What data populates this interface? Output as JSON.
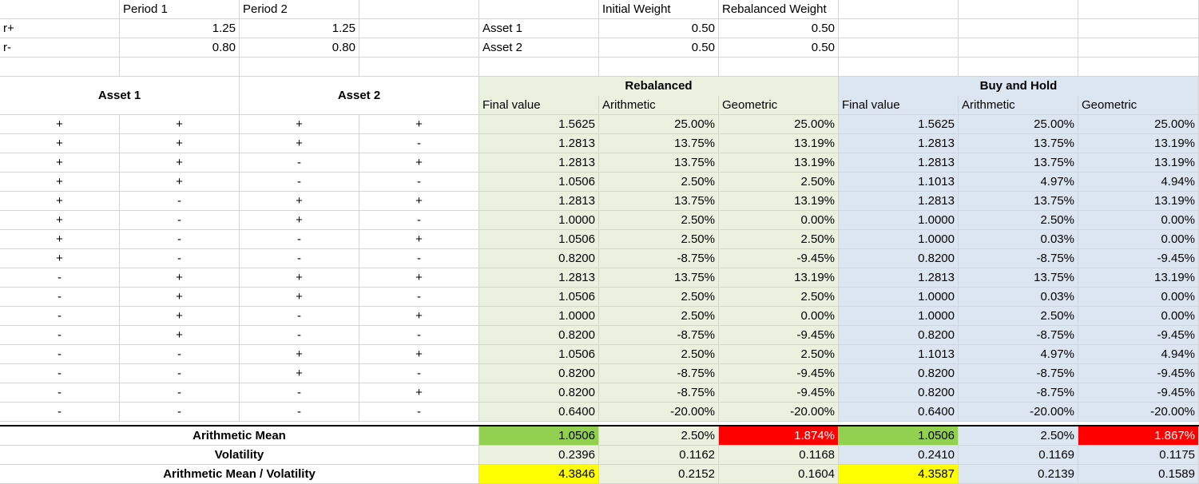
{
  "params": {
    "period_headers": [
      "Period 1",
      "Period 2"
    ],
    "rows": [
      {
        "label": "r+",
        "values": [
          "1.25",
          "1.25"
        ]
      },
      {
        "label": "r-",
        "values": [
          "0.80",
          "0.80"
        ]
      }
    ]
  },
  "weights": {
    "headers": [
      "Initial Weight",
      "Rebalanced Weight"
    ],
    "rows": [
      {
        "asset": "Asset 1",
        "initial": "0.50",
        "rebalanced": "0.50"
      },
      {
        "asset": "Asset 2",
        "initial": "0.50",
        "rebalanced": "0.50"
      }
    ]
  },
  "headers": {
    "asset1": "Asset 1",
    "asset2": "Asset 2",
    "rebalanced": "Rebalanced",
    "buy_hold": "Buy and Hold",
    "sub": [
      "Final value",
      "Arithmetic",
      "Geometric"
    ]
  },
  "scenarios": [
    {
      "signs": [
        "+",
        "+",
        "+",
        "+"
      ],
      "reb": [
        "1.5625",
        "25.00%",
        "25.00%"
      ],
      "bh": [
        "1.5625",
        "25.00%",
        "25.00%"
      ]
    },
    {
      "signs": [
        "+",
        "+",
        "+",
        "-"
      ],
      "reb": [
        "1.2813",
        "13.75%",
        "13.19%"
      ],
      "bh": [
        "1.2813",
        "13.75%",
        "13.19%"
      ]
    },
    {
      "signs": [
        "+",
        "+",
        "-",
        "+"
      ],
      "reb": [
        "1.2813",
        "13.75%",
        "13.19%"
      ],
      "bh": [
        "1.2813",
        "13.75%",
        "13.19%"
      ]
    },
    {
      "signs": [
        "+",
        "+",
        "-",
        "-"
      ],
      "reb": [
        "1.0506",
        "2.50%",
        "2.50%"
      ],
      "bh": [
        "1.1013",
        "4.97%",
        "4.94%"
      ]
    },
    {
      "signs": [
        "+",
        "-",
        "+",
        "+"
      ],
      "reb": [
        "1.2813",
        "13.75%",
        "13.19%"
      ],
      "bh": [
        "1.2813",
        "13.75%",
        "13.19%"
      ]
    },
    {
      "signs": [
        "+",
        "-",
        "+",
        "-"
      ],
      "reb": [
        "1.0000",
        "2.50%",
        "0.00%"
      ],
      "bh": [
        "1.0000",
        "2.50%",
        "0.00%"
      ]
    },
    {
      "signs": [
        "+",
        "-",
        "-",
        "+"
      ],
      "reb": [
        "1.0506",
        "2.50%",
        "2.50%"
      ],
      "bh": [
        "1.0000",
        "0.03%",
        "0.00%"
      ]
    },
    {
      "signs": [
        "+",
        "-",
        "-",
        "-"
      ],
      "reb": [
        "0.8200",
        "-8.75%",
        "-9.45%"
      ],
      "bh": [
        "0.8200",
        "-8.75%",
        "-9.45%"
      ]
    },
    {
      "signs": [
        "-",
        "+",
        "+",
        "+"
      ],
      "reb": [
        "1.2813",
        "13.75%",
        "13.19%"
      ],
      "bh": [
        "1.2813",
        "13.75%",
        "13.19%"
      ]
    },
    {
      "signs": [
        "-",
        "+",
        "+",
        "-"
      ],
      "reb": [
        "1.0506",
        "2.50%",
        "2.50%"
      ],
      "bh": [
        "1.0000",
        "0.03%",
        "0.00%"
      ]
    },
    {
      "signs": [
        "-",
        "+",
        "-",
        "+"
      ],
      "reb": [
        "1.0000",
        "2.50%",
        "0.00%"
      ],
      "bh": [
        "1.0000",
        "2.50%",
        "0.00%"
      ]
    },
    {
      "signs": [
        "-",
        "+",
        "-",
        "-"
      ],
      "reb": [
        "0.8200",
        "-8.75%",
        "-9.45%"
      ],
      "bh": [
        "0.8200",
        "-8.75%",
        "-9.45%"
      ]
    },
    {
      "signs": [
        "-",
        "-",
        "+",
        "+"
      ],
      "reb": [
        "1.0506",
        "2.50%",
        "2.50%"
      ],
      "bh": [
        "1.1013",
        "4.97%",
        "4.94%"
      ]
    },
    {
      "signs": [
        "-",
        "-",
        "+",
        "-"
      ],
      "reb": [
        "0.8200",
        "-8.75%",
        "-9.45%"
      ],
      "bh": [
        "0.8200",
        "-8.75%",
        "-9.45%"
      ]
    },
    {
      "signs": [
        "-",
        "-",
        "-",
        "+"
      ],
      "reb": [
        "0.8200",
        "-8.75%",
        "-9.45%"
      ],
      "bh": [
        "0.8200",
        "-8.75%",
        "-9.45%"
      ]
    },
    {
      "signs": [
        "-",
        "-",
        "-",
        "-"
      ],
      "reb": [
        "0.6400",
        "-20.00%",
        "-20.00%"
      ],
      "bh": [
        "0.6400",
        "-20.00%",
        "-20.00%"
      ]
    }
  ],
  "summary": [
    {
      "label": "Arithmetic Mean",
      "reb": [
        "1.0506",
        "2.50%",
        "1.874%"
      ],
      "bh": [
        "1.0506",
        "2.50%",
        "1.867%"
      ]
    },
    {
      "label": "Volatility",
      "reb": [
        "0.2396",
        "0.1162",
        "0.1168"
      ],
      "bh": [
        "0.2410",
        "0.1169",
        "0.1175"
      ]
    },
    {
      "label": "Arithmetic Mean / Volatility",
      "reb": [
        "4.3846",
        "0.2152",
        "0.1604"
      ],
      "bh": [
        "4.3587",
        "0.2139",
        "0.1589"
      ]
    }
  ],
  "colors": {
    "rebalanced_bg": "#ebf1de",
    "buy_hold_bg": "#dce6f1",
    "highlight_green": "#92d050",
    "highlight_red": "#ff0000",
    "highlight_yellow": "#ffff00"
  }
}
